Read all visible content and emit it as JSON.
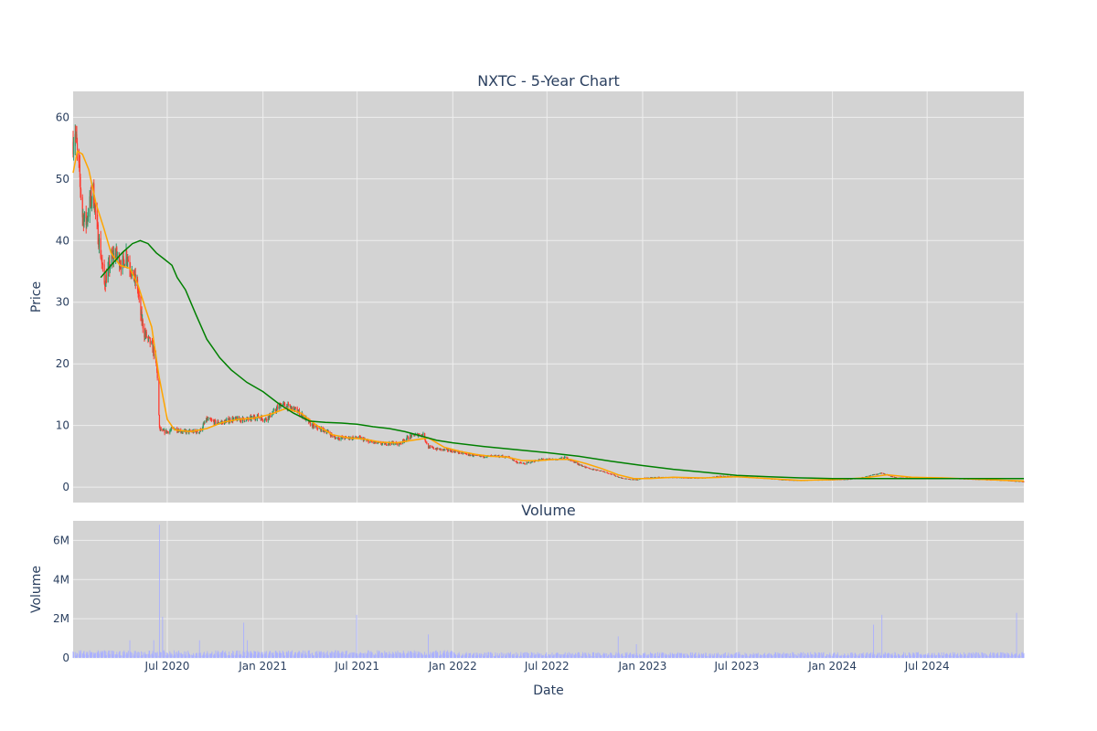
{
  "chart_data": [
    {
      "type": "candlestick",
      "title": "NXTC - 5-Year Chart",
      "ylabel": "Price",
      "xlabel": "",
      "ylim": [
        -2.5,
        64.2
      ],
      "xlim": [
        "2020-01-02",
        "2025-01-03"
      ],
      "grid": true,
      "legend": "none",
      "y_ticks": [
        "0",
        "10",
        "20",
        "30",
        "40",
        "50",
        "60"
      ],
      "colors": {
        "up": "#2e9a6a",
        "down": "#ff3b30",
        "ma_short": "#ffa500",
        "ma_long": "#008000",
        "plot_bg": "#d3d3d3",
        "grid": "#eeeeee"
      },
      "price_path": [
        [
          "2020-01-02",
          56.0
        ],
        [
          "2020-01-06",
          58.0
        ],
        [
          "2020-01-10",
          54.0
        ],
        [
          "2020-01-15",
          50.0
        ],
        [
          "2020-01-20",
          44.0
        ],
        [
          "2020-01-27",
          43.0
        ],
        [
          "2020-02-03",
          46.0
        ],
        [
          "2020-02-10",
          48.0
        ],
        [
          "2020-02-17",
          42.0
        ],
        [
          "2020-02-24",
          38.0
        ],
        [
          "2020-03-02",
          33.0
        ],
        [
          "2020-03-09",
          35.0
        ],
        [
          "2020-03-16",
          37.0
        ],
        [
          "2020-03-23",
          38.0
        ],
        [
          "2020-03-30",
          37.0
        ],
        [
          "2020-04-06",
          36.0
        ],
        [
          "2020-04-13",
          38.0
        ],
        [
          "2020-04-20",
          36.0
        ],
        [
          "2020-04-27",
          34.0
        ],
        [
          "2020-05-04",
          33.0
        ],
        [
          "2020-05-11",
          28.0
        ],
        [
          "2020-05-18",
          25.0
        ],
        [
          "2020-05-25",
          24.0
        ],
        [
          "2020-06-01",
          23.0
        ],
        [
          "2020-06-08",
          21.0
        ],
        [
          "2020-06-12",
          18.0
        ],
        [
          "2020-06-16",
          9.5
        ],
        [
          "2020-06-22",
          9.0
        ],
        [
          "2020-07-01",
          9.0
        ],
        [
          "2020-07-15",
          9.5
        ],
        [
          "2020-08-01",
          9.0
        ],
        [
          "2020-08-20",
          9.0
        ],
        [
          "2020-09-01",
          9.0
        ],
        [
          "2020-09-15",
          11.0
        ],
        [
          "2020-10-01",
          10.5
        ],
        [
          "2020-10-15",
          10.5
        ],
        [
          "2020-11-01",
          11.0
        ],
        [
          "2020-11-20",
          11.0
        ],
        [
          "2020-12-05",
          11.0
        ],
        [
          "2020-12-20",
          11.5
        ],
        [
          "2021-01-05",
          11.0
        ],
        [
          "2021-01-20",
          12.0
        ],
        [
          "2021-02-05",
          13.5
        ],
        [
          "2021-02-20",
          13.0
        ],
        [
          "2021-03-05",
          12.5
        ],
        [
          "2021-03-20",
          11.5
        ],
        [
          "2021-04-05",
          10.0
        ],
        [
          "2021-04-20",
          9.5
        ],
        [
          "2021-05-05",
          9.0
        ],
        [
          "2021-05-20",
          8.0
        ],
        [
          "2021-06-05",
          8.0
        ],
        [
          "2021-06-20",
          8.0
        ],
        [
          "2021-07-05",
          8.0
        ],
        [
          "2021-07-20",
          7.5
        ],
        [
          "2021-08-05",
          7.2
        ],
        [
          "2021-08-20",
          7.0
        ],
        [
          "2021-09-05",
          7.2
        ],
        [
          "2021-09-20",
          7.0
        ],
        [
          "2021-10-05",
          8.0
        ],
        [
          "2021-10-20",
          8.5
        ],
        [
          "2021-11-05",
          8.5
        ],
        [
          "2021-11-15",
          6.5
        ],
        [
          "2021-12-01",
          6.2
        ],
        [
          "2021-12-20",
          6.0
        ],
        [
          "2022-01-05",
          5.8
        ],
        [
          "2022-01-20",
          5.5
        ],
        [
          "2022-02-05",
          5.2
        ],
        [
          "2022-02-20",
          5.0
        ],
        [
          "2022-03-05",
          5.0
        ],
        [
          "2022-03-20",
          5.0
        ],
        [
          "2022-04-05",
          5.0
        ],
        [
          "2022-04-20",
          4.8
        ],
        [
          "2022-05-05",
          4.0
        ],
        [
          "2022-05-20",
          3.8
        ],
        [
          "2022-06-05",
          4.2
        ],
        [
          "2022-06-20",
          4.5
        ],
        [
          "2022-07-05",
          4.5
        ],
        [
          "2022-07-20",
          4.5
        ],
        [
          "2022-08-05",
          4.8
        ],
        [
          "2022-08-20",
          4.2
        ],
        [
          "2022-09-05",
          3.5
        ],
        [
          "2022-09-20",
          3.0
        ],
        [
          "2022-10-05",
          2.8
        ],
        [
          "2022-10-20",
          2.5
        ],
        [
          "2022-11-05",
          2.0
        ],
        [
          "2022-11-20",
          1.5
        ],
        [
          "2022-12-05",
          1.3
        ],
        [
          "2022-12-20",
          1.2
        ],
        [
          "2023-01-05",
          1.5
        ],
        [
          "2023-02-01",
          1.6
        ],
        [
          "2023-03-01",
          1.6
        ],
        [
          "2023-04-01",
          1.5
        ],
        [
          "2023-05-01",
          1.5
        ],
        [
          "2023-06-01",
          1.8
        ],
        [
          "2023-07-01",
          1.7
        ],
        [
          "2023-08-01",
          1.6
        ],
        [
          "2023-09-01",
          1.4
        ],
        [
          "2023-10-01",
          1.2
        ],
        [
          "2023-11-01",
          1.1
        ],
        [
          "2023-12-01",
          1.2
        ],
        [
          "2024-01-01",
          1.2
        ],
        [
          "2024-02-01",
          1.3
        ],
        [
          "2024-03-01",
          1.6
        ],
        [
          "2024-03-20",
          2.0
        ],
        [
          "2024-04-05",
          2.3
        ],
        [
          "2024-04-20",
          1.8
        ],
        [
          "2024-05-05",
          1.5
        ],
        [
          "2024-06-01",
          1.5
        ],
        [
          "2024-07-01",
          1.5
        ],
        [
          "2024-08-01",
          1.5
        ],
        [
          "2024-09-01",
          1.4
        ],
        [
          "2024-10-01",
          1.3
        ],
        [
          "2024-11-01",
          1.2
        ],
        [
          "2024-12-01",
          1.1
        ],
        [
          "2025-01-03",
          0.9
        ]
      ],
      "ma_short": [
        [
          "2020-01-02",
          51.0
        ],
        [
          "2020-01-10",
          54.5
        ],
        [
          "2020-01-20",
          54.0
        ],
        [
          "2020-02-01",
          51.5
        ],
        [
          "2020-02-15",
          46.0
        ],
        [
          "2020-03-01",
          42.0
        ],
        [
          "2020-03-15",
          38.0
        ],
        [
          "2020-04-01",
          36.0
        ],
        [
          "2020-04-20",
          35.5
        ],
        [
          "2020-05-05",
          33.0
        ],
        [
          "2020-05-20",
          29.0
        ],
        [
          "2020-06-01",
          26.0
        ],
        [
          "2020-06-15",
          18.0
        ],
        [
          "2020-07-01",
          11.0
        ],
        [
          "2020-07-15",
          9.3
        ],
        [
          "2020-08-15",
          9.0
        ],
        [
          "2020-09-15",
          9.5
        ],
        [
          "2020-10-15",
          10.5
        ],
        [
          "2020-11-15",
          11.0
        ],
        [
          "2020-12-15",
          11.2
        ],
        [
          "2021-01-15",
          11.8
        ],
        [
          "2021-02-15",
          12.8
        ],
        [
          "2021-03-15",
          12.0
        ],
        [
          "2021-04-15",
          10.0
        ],
        [
          "2021-05-15",
          8.5
        ],
        [
          "2021-06-15",
          8.0
        ],
        [
          "2021-07-15",
          7.8
        ],
        [
          "2021-08-15",
          7.3
        ],
        [
          "2021-09-15",
          7.2
        ],
        [
          "2021-10-15",
          7.6
        ],
        [
          "2021-11-15",
          8.0
        ],
        [
          "2021-12-15",
          6.5
        ],
        [
          "2022-01-15",
          5.8
        ],
        [
          "2022-02-15",
          5.3
        ],
        [
          "2022-03-15",
          5.0
        ],
        [
          "2022-04-15",
          4.9
        ],
        [
          "2022-05-15",
          4.3
        ],
        [
          "2022-06-15",
          4.3
        ],
        [
          "2022-07-15",
          4.5
        ],
        [
          "2022-08-15",
          4.5
        ],
        [
          "2022-09-15",
          3.8
        ],
        [
          "2022-10-15",
          3.0
        ],
        [
          "2022-11-15",
          2.0
        ],
        [
          "2022-12-15",
          1.4
        ],
        [
          "2023-01-15",
          1.4
        ],
        [
          "2023-03-01",
          1.6
        ],
        [
          "2023-05-01",
          1.5
        ],
        [
          "2023-07-01",
          1.7
        ],
        [
          "2023-09-01",
          1.4
        ],
        [
          "2023-11-01",
          1.1
        ],
        [
          "2024-01-01",
          1.2
        ],
        [
          "2024-03-01",
          1.5
        ],
        [
          "2024-04-15",
          2.0
        ],
        [
          "2024-06-01",
          1.6
        ],
        [
          "2024-08-01",
          1.5
        ],
        [
          "2024-10-01",
          1.3
        ],
        [
          "2024-12-01",
          1.1
        ],
        [
          "2025-01-03",
          1.0
        ]
      ],
      "ma_long": [
        [
          "2020-02-24",
          34.0
        ],
        [
          "2020-03-15",
          36.0
        ],
        [
          "2020-04-05",
          38.0
        ],
        [
          "2020-04-25",
          39.5
        ],
        [
          "2020-05-10",
          40.0
        ],
        [
          "2020-05-25",
          39.5
        ],
        [
          "2020-06-10",
          38.0
        ],
        [
          "2020-06-25",
          37.0
        ],
        [
          "2020-07-10",
          36.0
        ],
        [
          "2020-07-20",
          34.0
        ],
        [
          "2020-08-05",
          32.0
        ],
        [
          "2020-08-25",
          28.0
        ],
        [
          "2020-09-15",
          24.0
        ],
        [
          "2020-10-10",
          21.0
        ],
        [
          "2020-11-01",
          19.0
        ],
        [
          "2020-12-01",
          17.0
        ],
        [
          "2021-01-01",
          15.5
        ],
        [
          "2021-02-01",
          13.5
        ],
        [
          "2021-03-01",
          12.0
        ],
        [
          "2021-04-01",
          10.7
        ],
        [
          "2021-05-01",
          10.5
        ],
        [
          "2021-06-01",
          10.4
        ],
        [
          "2021-07-01",
          10.2
        ],
        [
          "2021-08-01",
          9.8
        ],
        [
          "2021-09-01",
          9.5
        ],
        [
          "2021-10-01",
          9.0
        ],
        [
          "2021-11-01",
          8.3
        ],
        [
          "2021-12-01",
          7.6
        ],
        [
          "2022-01-01",
          7.2
        ],
        [
          "2022-03-01",
          6.6
        ],
        [
          "2022-05-01",
          6.1
        ],
        [
          "2022-07-01",
          5.6
        ],
        [
          "2022-09-01",
          5.0
        ],
        [
          "2022-11-01",
          4.2
        ],
        [
          "2023-01-01",
          3.5
        ],
        [
          "2023-03-01",
          2.9
        ],
        [
          "2023-05-01",
          2.4
        ],
        [
          "2023-07-01",
          1.9
        ],
        [
          "2023-09-01",
          1.7
        ],
        [
          "2023-11-01",
          1.5
        ],
        [
          "2024-01-01",
          1.4
        ],
        [
          "2024-04-01",
          1.4
        ],
        [
          "2024-07-01",
          1.4
        ],
        [
          "2024-10-01",
          1.4
        ],
        [
          "2025-01-03",
          1.4
        ]
      ]
    },
    {
      "type": "bar",
      "title": "Volume",
      "ylabel": "Volume",
      "xlabel": "Date",
      "ylim": [
        0,
        7000000
      ],
      "y_ticks": [
        {
          "value": 0,
          "label": "0"
        },
        {
          "value": 2000000,
          "label": "2M"
        },
        {
          "value": 4000000,
          "label": "4M"
        },
        {
          "value": 6000000,
          "label": "6M"
        }
      ],
      "x_ticks": [
        {
          "date": "2020-07-01",
          "label": "Jul 2020"
        },
        {
          "date": "2021-01-01",
          "label": "Jan 2021"
        },
        {
          "date": "2021-07-01",
          "label": "Jul 2021"
        },
        {
          "date": "2022-01-01",
          "label": "Jan 2022"
        },
        {
          "date": "2022-07-01",
          "label": "Jul 2022"
        },
        {
          "date": "2023-01-01",
          "label": "Jan 2023"
        },
        {
          "date": "2023-07-01",
          "label": "Jul 2023"
        },
        {
          "date": "2024-01-01",
          "label": "Jan 2024"
        },
        {
          "date": "2024-07-01",
          "label": "Jul 2024"
        }
      ],
      "color": "#aab0ff",
      "base_volume": 250000,
      "spikes": [
        [
          "2020-04-20",
          900000
        ],
        [
          "2020-05-10",
          700000
        ],
        [
          "2020-06-05",
          900000
        ],
        [
          "2020-06-16",
          6800000
        ],
        [
          "2020-06-22",
          2100000
        ],
        [
          "2020-06-28",
          2400000
        ],
        [
          "2020-07-05",
          1300000
        ],
        [
          "2020-09-01",
          900000
        ],
        [
          "2020-11-25",
          1800000
        ],
        [
          "2020-12-02",
          900000
        ],
        [
          "2021-06-30",
          2200000
        ],
        [
          "2021-11-15",
          1200000
        ],
        [
          "2022-11-15",
          1100000
        ],
        [
          "2022-12-20",
          700000
        ],
        [
          "2024-03-20",
          1700000
        ],
        [
          "2024-04-05",
          2200000
        ],
        [
          "2024-12-20",
          2300000
        ]
      ]
    }
  ]
}
